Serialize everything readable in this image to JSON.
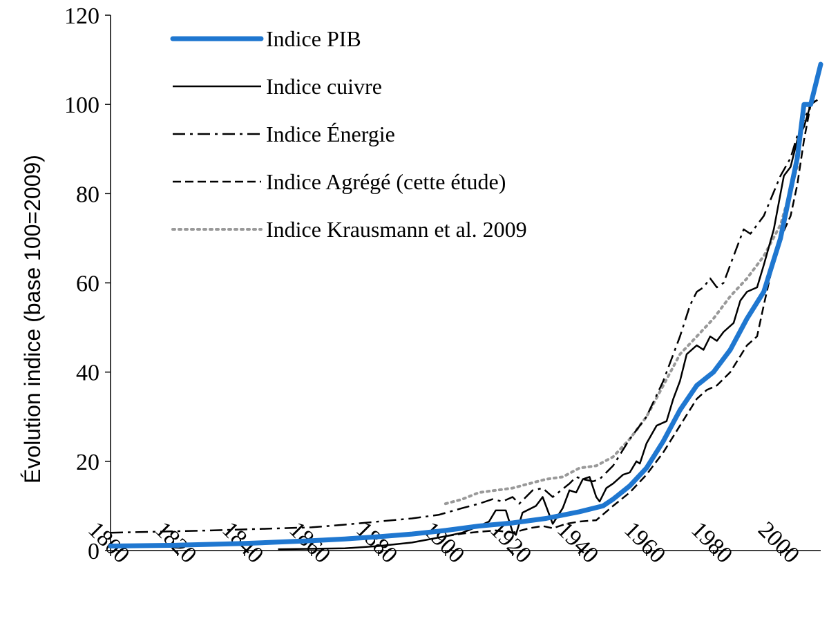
{
  "chart_data": {
    "type": "line",
    "title": "",
    "xlabel": "",
    "ylabel": "Évolution indice (base 100=2009)",
    "xlim": [
      1800,
      2012
    ],
    "ylim": [
      0,
      120
    ],
    "x_ticks": [
      "1800",
      "1820",
      "1840",
      "1860",
      "1880",
      "1900",
      "1920",
      "1940",
      "1960",
      "1980",
      "2000"
    ],
    "y_ticks": [
      "0",
      "20",
      "40",
      "60",
      "80",
      "100",
      "120"
    ],
    "grid": false,
    "legend_position": "top-left",
    "series": [
      {
        "name": "Indice PIB",
        "color": "#1f77d0",
        "style": "solid-thick",
        "points": [
          [
            1800,
            1
          ],
          [
            1820,
            1.2
          ],
          [
            1840,
            1.6
          ],
          [
            1860,
            2.2
          ],
          [
            1870,
            2.6
          ],
          [
            1880,
            3.1
          ],
          [
            1890,
            3.7
          ],
          [
            1900,
            4.5
          ],
          [
            1910,
            5.5
          ],
          [
            1920,
            6.2
          ],
          [
            1930,
            7.2
          ],
          [
            1940,
            8.7
          ],
          [
            1947,
            10
          ],
          [
            1950,
            11.5
          ],
          [
            1955,
            14.5
          ],
          [
            1960,
            18.5
          ],
          [
            1965,
            24.5
          ],
          [
            1970,
            31.5
          ],
          [
            1975,
            37
          ],
          [
            1980,
            40
          ],
          [
            1985,
            45
          ],
          [
            1990,
            52
          ],
          [
            1995,
            58
          ],
          [
            2000,
            70
          ],
          [
            2005,
            88
          ],
          [
            2007,
            100
          ],
          [
            2009,
            100
          ],
          [
            2012,
            109
          ]
        ]
      },
      {
        "name": "Indice cuivre",
        "color": "#000000",
        "style": "solid",
        "points": [
          [
            1850,
            0.3
          ],
          [
            1870,
            0.5
          ],
          [
            1880,
            1
          ],
          [
            1890,
            1.8
          ],
          [
            1895,
            2.5
          ],
          [
            1900,
            3.2
          ],
          [
            1905,
            4
          ],
          [
            1910,
            5.5
          ],
          [
            1913,
            6.5
          ],
          [
            1915,
            9
          ],
          [
            1918,
            9
          ],
          [
            1920,
            4.2
          ],
          [
            1921,
            3.5
          ],
          [
            1923,
            8.5
          ],
          [
            1927,
            10
          ],
          [
            1929,
            12
          ],
          [
            1931,
            8
          ],
          [
            1932,
            6
          ],
          [
            1935,
            9.5
          ],
          [
            1937,
            13.5
          ],
          [
            1939,
            13
          ],
          [
            1941,
            16
          ],
          [
            1943,
            16.5
          ],
          [
            1945,
            12
          ],
          [
            1946,
            11
          ],
          [
            1948,
            14
          ],
          [
            1950,
            15
          ],
          [
            1953,
            17
          ],
          [
            1955,
            17.5
          ],
          [
            1957,
            20
          ],
          [
            1958,
            19.5
          ],
          [
            1960,
            24
          ],
          [
            1963,
            28
          ],
          [
            1966,
            29
          ],
          [
            1968,
            34
          ],
          [
            1970,
            38
          ],
          [
            1972,
            44
          ],
          [
            1975,
            46
          ],
          [
            1977,
            45
          ],
          [
            1979,
            48
          ],
          [
            1981,
            47
          ],
          [
            1983,
            49
          ],
          [
            1986,
            51
          ],
          [
            1988,
            56
          ],
          [
            1990,
            58
          ],
          [
            1993,
            59
          ],
          [
            1995,
            64
          ],
          [
            1998,
            72
          ],
          [
            2000,
            80
          ],
          [
            2001,
            84
          ],
          [
            2003,
            86
          ],
          [
            2005,
            92
          ],
          [
            2007,
            95
          ],
          [
            2009,
            100
          ],
          [
            2010,
            101
          ]
        ]
      },
      {
        "name": "Indice Énergie",
        "color": "#000000",
        "style": "dash-dot",
        "points": [
          [
            1800,
            4
          ],
          [
            1830,
            4.5
          ],
          [
            1860,
            5.2
          ],
          [
            1870,
            5.8
          ],
          [
            1880,
            6.5
          ],
          [
            1890,
            7.2
          ],
          [
            1898,
            8
          ],
          [
            1905,
            9.5
          ],
          [
            1910,
            10.5
          ],
          [
            1914,
            11.5
          ],
          [
            1917,
            11
          ],
          [
            1920,
            12
          ],
          [
            1922,
            10.5
          ],
          [
            1926,
            13.5
          ],
          [
            1929,
            14
          ],
          [
            1932,
            12
          ],
          [
            1937,
            15
          ],
          [
            1939,
            16.5
          ],
          [
            1941,
            16
          ],
          [
            1944,
            15.5
          ],
          [
            1946,
            16
          ],
          [
            1950,
            19
          ],
          [
            1955,
            25
          ],
          [
            1960,
            30
          ],
          [
            1965,
            38
          ],
          [
            1970,
            48
          ],
          [
            1973,
            55
          ],
          [
            1975,
            58
          ],
          [
            1977,
            59
          ],
          [
            1979,
            61
          ],
          [
            1981,
            59
          ],
          [
            1983,
            60
          ],
          [
            1986,
            66
          ],
          [
            1989,
            72
          ],
          [
            1991,
            71
          ],
          [
            1995,
            75
          ],
          [
            2000,
            84
          ],
          [
            2003,
            88
          ],
          [
            2005,
            93
          ],
          [
            2009,
            100
          ],
          [
            2011,
            101
          ]
        ]
      },
      {
        "name": "Indice Agrégé (cette étude)",
        "color": "#000000",
        "style": "dashed",
        "points": [
          [
            1900,
            3.2
          ],
          [
            1905,
            3.8
          ],
          [
            1910,
            4.2
          ],
          [
            1915,
            4.5
          ],
          [
            1920,
            4
          ],
          [
            1925,
            5
          ],
          [
            1929,
            5.5
          ],
          [
            1932,
            5
          ],
          [
            1936,
            6
          ],
          [
            1940,
            6.5
          ],
          [
            1945,
            6.8
          ],
          [
            1950,
            10
          ],
          [
            1955,
            13
          ],
          [
            1960,
            17
          ],
          [
            1965,
            22
          ],
          [
            1970,
            28
          ],
          [
            1975,
            34
          ],
          [
            1978,
            36
          ],
          [
            1981,
            37
          ],
          [
            1985,
            40
          ],
          [
            1990,
            46
          ],
          [
            1993,
            48
          ],
          [
            1995,
            55
          ],
          [
            1998,
            65
          ],
          [
            2000,
            70
          ],
          [
            2003,
            75
          ],
          [
            2005,
            82
          ],
          [
            2007,
            92
          ],
          [
            2009,
            100
          ],
          [
            2011,
            101
          ]
        ]
      },
      {
        "name": "Indice Krausmann et al. 2009",
        "color": "#999999",
        "style": "dotted",
        "points": [
          [
            1900,
            10.5
          ],
          [
            1905,
            11.5
          ],
          [
            1910,
            13
          ],
          [
            1915,
            13.5
          ],
          [
            1920,
            14
          ],
          [
            1925,
            15
          ],
          [
            1930,
            16
          ],
          [
            1935,
            16.5
          ],
          [
            1940,
            18.5
          ],
          [
            1945,
            19
          ],
          [
            1950,
            21
          ],
          [
            1955,
            25
          ],
          [
            1960,
            30
          ],
          [
            1965,
            37
          ],
          [
            1970,
            44
          ],
          [
            1975,
            48
          ],
          [
            1980,
            52
          ],
          [
            1985,
            57
          ],
          [
            1990,
            61
          ],
          [
            1995,
            66
          ],
          [
            2000,
            73
          ],
          [
            2005,
            86
          ]
        ]
      }
    ]
  }
}
